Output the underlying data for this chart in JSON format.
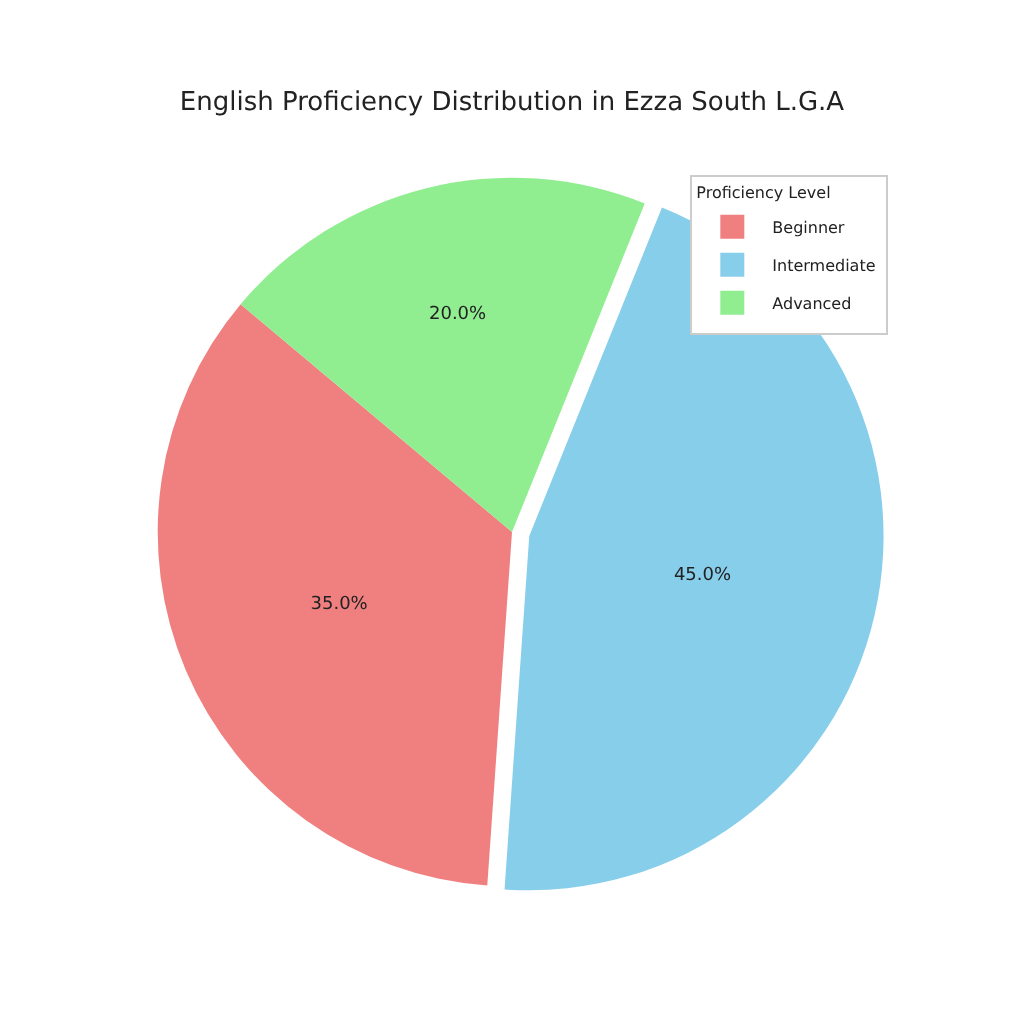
{
  "chart_data": {
    "type": "pie",
    "title": "English Proficiency Distribution in Ezza South L.G.A",
    "categories": [
      "Beginner",
      "Intermediate",
      "Advanced"
    ],
    "values": [
      35,
      45,
      20
    ],
    "colors": [
      "#f08080",
      "#87ceeb",
      "#90ee90"
    ],
    "value_labels": [
      "35.0%",
      "45.0%",
      "20.0%"
    ],
    "legend_title": "Proficiency Level",
    "legend": "top right"
  }
}
